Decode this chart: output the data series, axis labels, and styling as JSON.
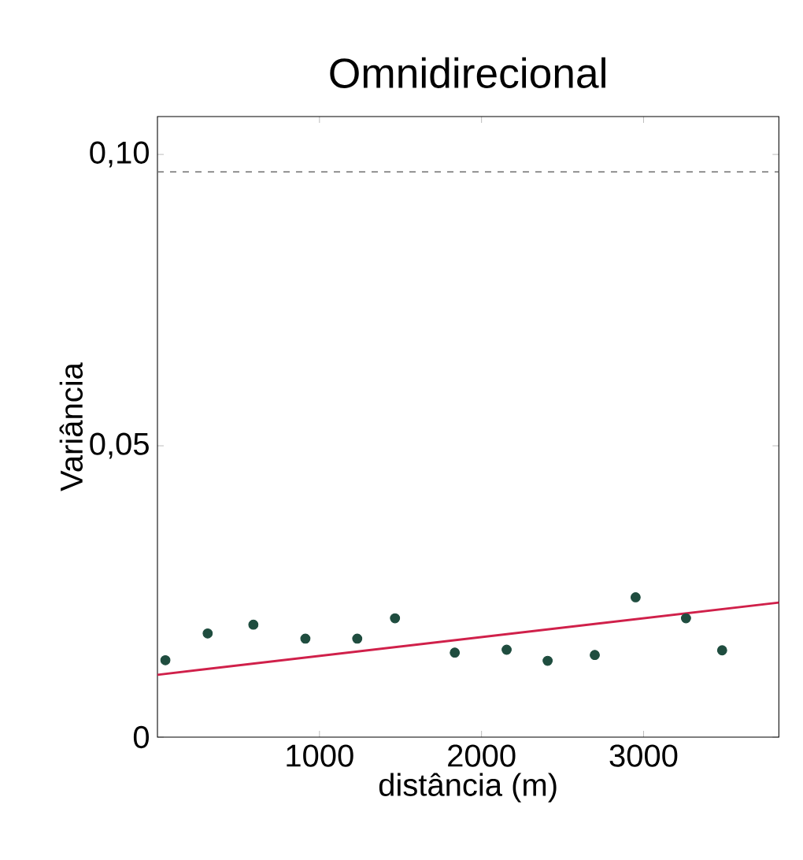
{
  "chart_data": {
    "type": "scatter",
    "title": "Omnidirecional",
    "xlabel": "distância (m)",
    "ylabel": "Variância",
    "xlim": [
      0,
      3835
    ],
    "ylim": [
      0,
      0.1065
    ],
    "xticks": [
      1000,
      2000,
      3000
    ],
    "yticks": [
      {
        "value": 0,
        "label": "0"
      },
      {
        "value": 0.05,
        "label": "0,05"
      },
      {
        "value": 0.1,
        "label": "0,10"
      }
    ],
    "series": [
      {
        "marker": "circle",
        "color": "#1f4d3f",
        "x": [
          49,
          310,
          592,
          913,
          1233,
          1466,
          1835,
          2155,
          2408,
          2699,
          2951,
          3262,
          3485
        ],
        "values": [
          0.0132,
          0.0178,
          0.0193,
          0.0169,
          0.0169,
          0.0204,
          0.0145,
          0.015,
          0.0131,
          0.0141,
          0.024,
          0.0204,
          0.0149
        ]
      },
      {
        "type": "line",
        "marker": "none",
        "color": "#d0204a",
        "line_style": "solid",
        "x": [
          0,
          3835
        ],
        "values": [
          0.0107,
          0.0231
        ]
      }
    ],
    "ref_lines": [
      {
        "axis": "y",
        "value": 0.097,
        "color": "#707070",
        "line_style": "dashed"
      }
    ]
  }
}
